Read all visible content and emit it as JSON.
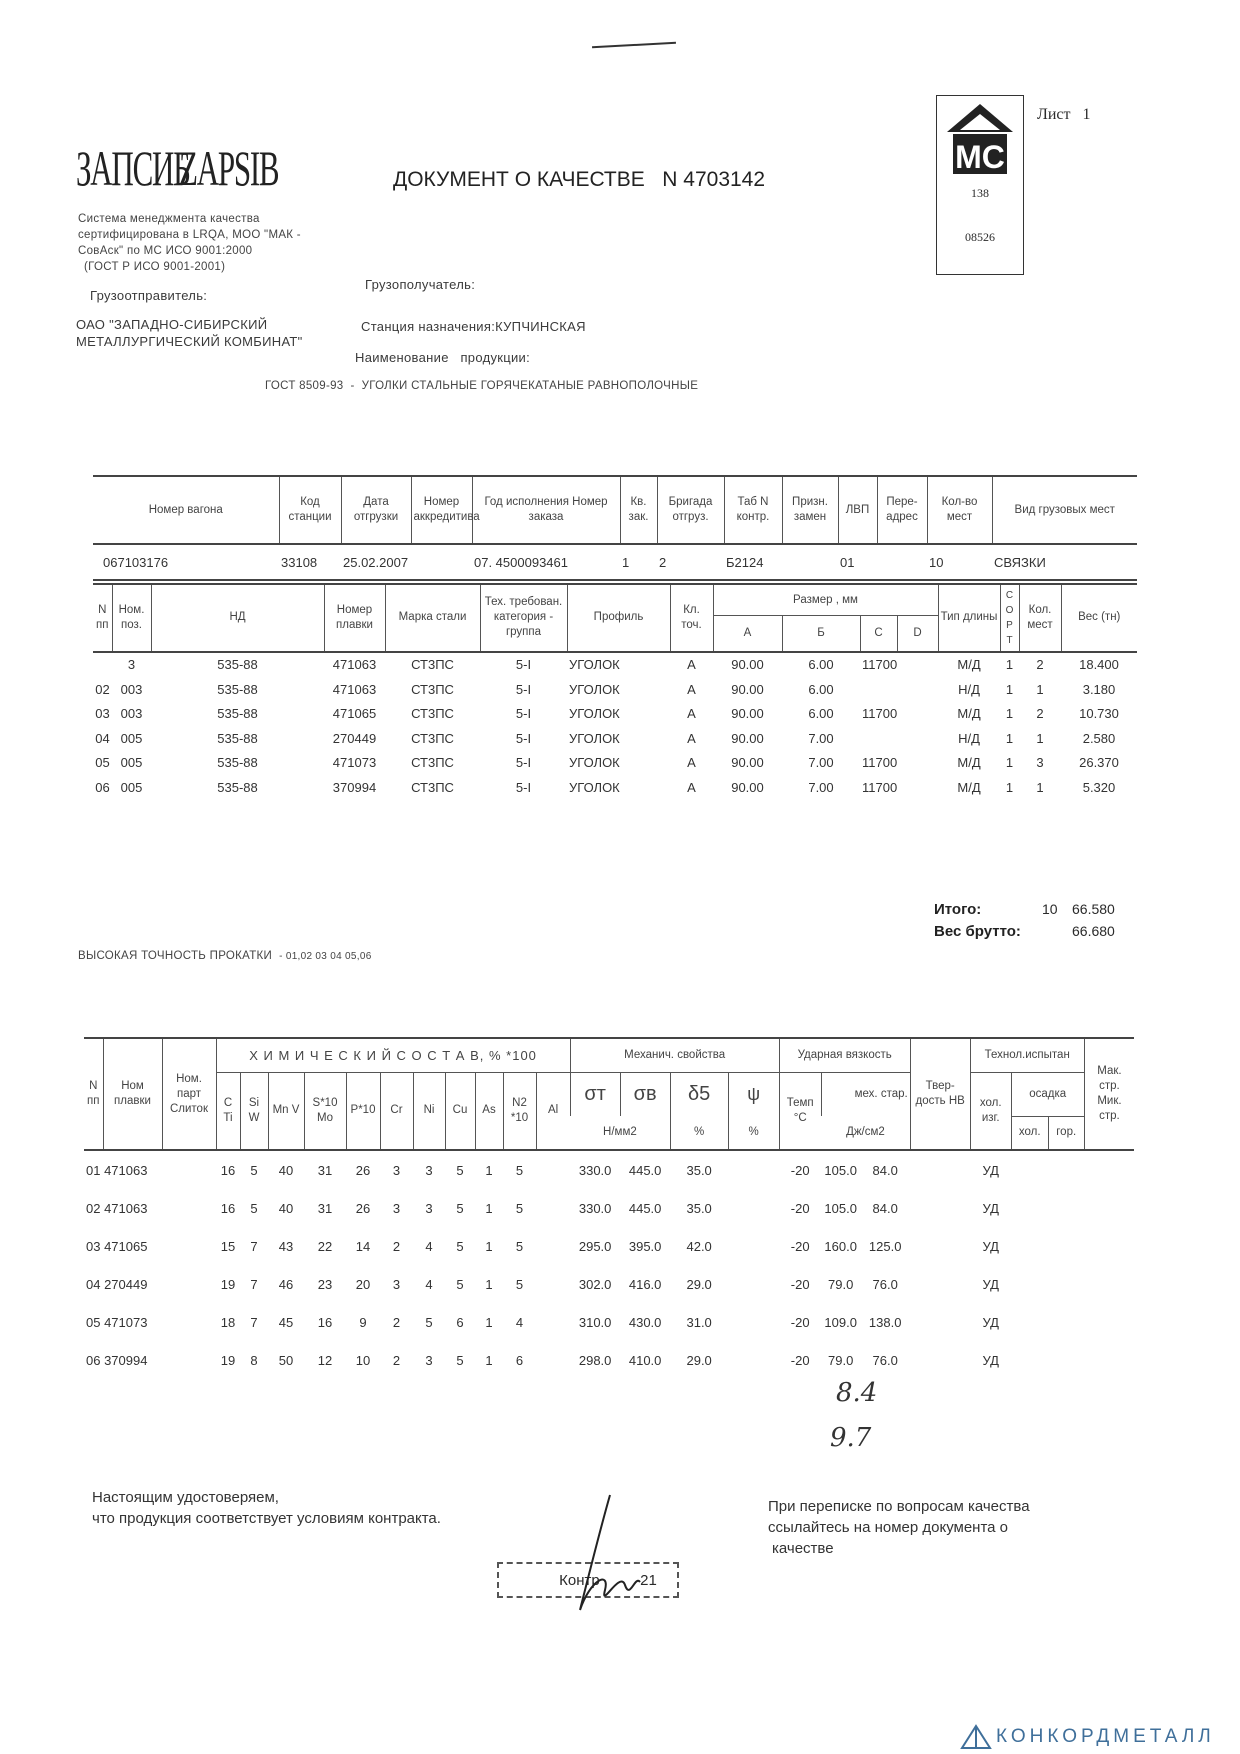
{
  "header": {
    "logo_text_ru": "ЗАПСИБ",
    "logo_text_en": "ZAPSIB",
    "title": "ДОКУМЕНТ О КАЧЕСТВЕ   N 4703142",
    "sheet_label": "Лист",
    "sheet_number": "1",
    "stamp_mark": "МС",
    "stamp_number": "138",
    "stamp_code": "08526",
    "certification": [
      "Система менеджмента качества",
      "сертифицирована в LRQA, МОО \"МАК -",
      "СовАск\" по МС ИСО 9001:2000",
      "(ГОСТ Р ИСО 9001-2001)"
    ],
    "shipper_label": "Грузоотправитель:",
    "shipper_lines": [
      "ОАО \"ЗАПАДНО-СИБИРСКИЙ",
      "МЕТАЛЛУРГИЧЕСКИЙ КОМБИНАТ\""
    ],
    "consignee_label": "Грузополучатель:",
    "station": "Станция назначения:КУПЧИНСКАЯ",
    "product_label": "Наименование   продукции:",
    "product": "ГОСТ 8509-93  -  УГОЛКИ СТАЛЬНЫЕ ГОРЯЧЕКАТАНЫЕ РАВНОПОЛОЧНЫЕ"
  },
  "shipment": {
    "columns": [
      "Номер вагона",
      "Код станции",
      "Дата отгрузки",
      "Номер аккредитива",
      "Год исполнения Номер заказа",
      "Кв. зак.",
      "Бригада отгруз.",
      "Таб N контр.",
      "Призн. замен",
      "ЛВП",
      "Пере-адрес",
      "Кол-во мест",
      "Вид грузовых мест"
    ],
    "row": [
      "067103176",
      "33108",
      "25.02.2007",
      "",
      "07. 4500093461",
      "1",
      "2",
      "Б2124",
      "",
      "01",
      "",
      "10",
      "СВЯЗКИ"
    ]
  },
  "items": {
    "columns": {
      "n": "N пп",
      "pos": "Ном. поз.",
      "nd": "НД",
      "heat": "Номер плавки",
      "grade": "Марка стали",
      "tech": "Тех. требован. категория - группа",
      "profile": "Профиль",
      "accuracy": "Кл. точ.",
      "size": "Размер , мм",
      "a": "А",
      "b": "Б",
      "c": "С",
      "d": "D",
      "length": "Тип длины",
      "sort": "С О Р Т",
      "places": "Кол. мест",
      "weight": "Вес (тн)"
    },
    "rows": [
      [
        "",
        "3",
        "535-88",
        "471063",
        "СТ3ПС",
        "5-I",
        "УГОЛОК",
        "А",
        "90.00",
        "6.00",
        "11700",
        "",
        "М/Д",
        "1",
        "2",
        "18.400"
      ],
      [
        "02",
        "003",
        "535-88",
        "471063",
        "СТ3ПС",
        "5-I",
        "УГОЛОК",
        "А",
        "90.00",
        "6.00",
        "",
        "",
        "Н/Д",
        "1",
        "1",
        "3.180"
      ],
      [
        "03",
        "003",
        "535-88",
        "471065",
        "СТ3ПС",
        "5-I",
        "УГОЛОК",
        "А",
        "90.00",
        "6.00",
        "11700",
        "",
        "М/Д",
        "1",
        "2",
        "10.730"
      ],
      [
        "04",
        "005",
        "535-88",
        "270449",
        "СТ3ПС",
        "5-I",
        "УГОЛОК",
        "А",
        "90.00",
        "7.00",
        "",
        "",
        "Н/Д",
        "1",
        "1",
        "2.580"
      ],
      [
        "05",
        "005",
        "535-88",
        "471073",
        "СТ3ПС",
        "5-I",
        "УГОЛОК",
        "А",
        "90.00",
        "7.00",
        "11700",
        "",
        "М/Д",
        "1",
        "3",
        "26.370"
      ],
      [
        "06",
        "005",
        "535-88",
        "370994",
        "СТ3ПС",
        "5-I",
        "УГОЛОК",
        "А",
        "90.00",
        "7.00",
        "11700",
        "",
        "М/Д",
        "1",
        "1",
        "5.320"
      ]
    ]
  },
  "totals": {
    "total_label": "Итого:",
    "total_places": "10",
    "total_weight": "66.580",
    "gross_label": "Вес брутто:",
    "gross_weight": "66.680"
  },
  "rolling_note": "ВЫСОКАЯ ТОЧНОСТЬ ПРОКАТКИ",
  "rolling_codes": "- 01,02 03 04 05,06",
  "chem": {
    "columns": {
      "n": "N пп",
      "heat": "Ном плавки",
      "batch": "Ном. парт Слиток",
      "chem_title": "Х И М И Ч Е С К И Й   С О С Т А В, % *100",
      "c": "C Ti",
      "si": "Si W",
      "mn": "Mn V",
      "s": "S*10 Mo",
      "p": "P*10",
      "cr": "Cr",
      "ni": "Ni",
      "cu": "Cu",
      "as": "As",
      "n2": "N2 *10",
      "al": "Al",
      "mech_title": "Механич. свойства",
      "sig_t": "σт",
      "sig_b": "σв",
      "delta": "δ5",
      "psi": "ψ",
      "mech_unit": "Н/мм2",
      "pct": "%",
      "pct2": "%",
      "impact_title": "Ударная вязкость",
      "temp": "Темп °C",
      "aging": "мех. стар.",
      "impact_unit": "Дж/см2",
      "hardness": "Твер-дость HB",
      "tech_title": "Технол.испытан",
      "bend": "хол. изг.",
      "upset_cold": "хол.",
      "upset_hot": "гор.",
      "upset": "осадка",
      "macro": "Мак. стр. Мик. стр."
    },
    "rows": [
      [
        "01 471063",
        "",
        "16",
        "5",
        "40",
        "31",
        "26",
        "3",
        "3",
        "5",
        "1",
        "5",
        "",
        "330.0",
        "445.0",
        "35.0",
        "",
        "-20",
        "105.0",
        "84.0",
        "",
        "УД",
        "",
        "",
        ""
      ],
      [
        "02 471063",
        "",
        "16",
        "5",
        "40",
        "31",
        "26",
        "3",
        "3",
        "5",
        "1",
        "5",
        "",
        "330.0",
        "445.0",
        "35.0",
        "",
        "-20",
        "105.0",
        "84.0",
        "",
        "УД",
        "",
        "",
        ""
      ],
      [
        "03 471065",
        "",
        "15",
        "7",
        "43",
        "22",
        "14",
        "2",
        "4",
        "5",
        "1",
        "5",
        "",
        "295.0",
        "395.0",
        "42.0",
        "",
        "-20",
        "160.0",
        "125.0",
        "",
        "УД",
        "",
        "",
        ""
      ],
      [
        "04 270449",
        "",
        "19",
        "7",
        "46",
        "23",
        "20",
        "3",
        "4",
        "5",
        "1",
        "5",
        "",
        "302.0",
        "416.0",
        "29.0",
        "",
        "-20",
        "79.0",
        "76.0",
        "",
        "УД",
        "",
        "",
        ""
      ],
      [
        "05 471073",
        "",
        "18",
        "7",
        "45",
        "16",
        "9",
        "2",
        "5",
        "6",
        "1",
        "4",
        "",
        "310.0",
        "430.0",
        "31.0",
        "",
        "-20",
        "109.0",
        "138.0",
        "",
        "УД",
        "",
        "",
        ""
      ],
      [
        "06 370994",
        "",
        "19",
        "8",
        "50",
        "12",
        "10",
        "2",
        "3",
        "5",
        "1",
        "6",
        "",
        "298.0",
        "410.0",
        "29.0",
        "",
        "-20",
        "79.0",
        "76.0",
        "",
        "УД",
        "",
        "",
        ""
      ]
    ]
  },
  "handwritten": [
    "8.4",
    "9.7"
  ],
  "footer": {
    "left": [
      "Настоящим удостоверяем,",
      "что продукция соответствует условиям контракта."
    ],
    "right": [
      "При переписке по вопросам качества",
      "ссылайтесь на номер документа о",
      "качестве"
    ],
    "control_stamp": "Контр",
    "control_number": "21"
  },
  "watermark": "КОНКОРДМЕТАЛЛ",
  "colors": {
    "ink": "#2a2a2a",
    "watermark": "#3f6f9a"
  }
}
